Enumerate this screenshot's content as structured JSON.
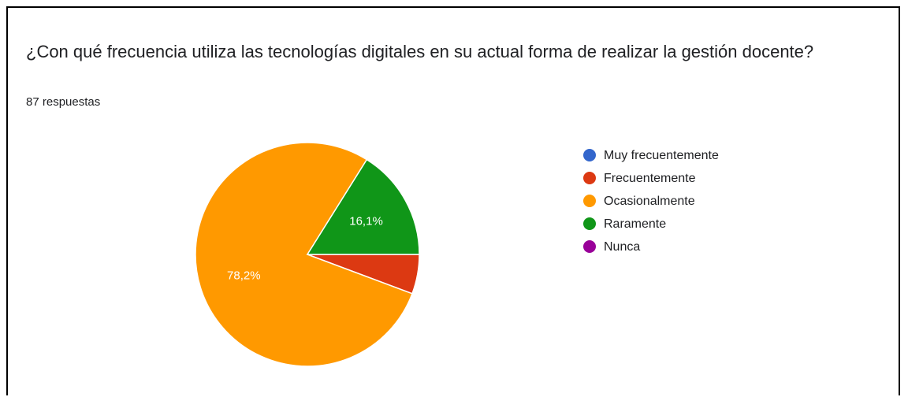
{
  "chart_data": {
    "type": "pie",
    "title": "¿Con qué frecuencia utiliza las tecnologías digitales en su actual forma de realizar la gestión docente?",
    "subtitle": "87 respuestas",
    "categories": [
      "Muy frecuentemente",
      "Frecuentemente",
      "Ocasionalmente",
      "Raramente",
      "Nunca"
    ],
    "values": [
      0,
      5.7,
      78.2,
      16.1,
      0
    ],
    "value_labels": [
      null,
      null,
      "78,2%",
      "16,1%",
      null
    ],
    "colors": [
      "#3366cc",
      "#dc3912",
      "#ff9900",
      "#109618",
      "#990099"
    ],
    "legend": "right"
  }
}
